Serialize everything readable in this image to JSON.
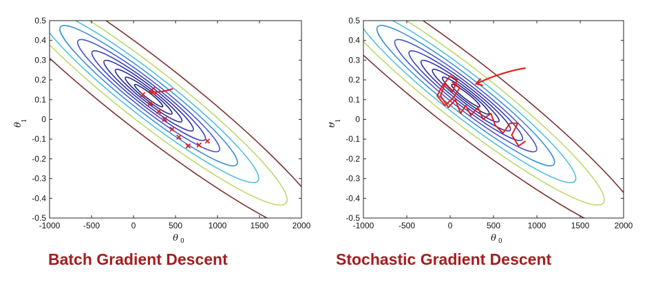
{
  "chart_data": [
    {
      "type": "contour",
      "caption": "Batch Gradient Descent",
      "xlabel": "θ",
      "xlabel_sub": "0",
      "ylabel": "θ",
      "ylabel_sub": "1",
      "xlim": [
        -1000,
        2000
      ],
      "ylim": [
        -0.5,
        0.5
      ],
      "xticks": [
        "-1000",
        "-500",
        "0",
        "500",
        "1000",
        "1500",
        "2000"
      ],
      "yticks": [
        "0.5",
        "0.4",
        "0.3",
        "0.2",
        "0.1",
        "0",
        "-0.1",
        "-0.2",
        "-0.3",
        "-0.4",
        "-0.5"
      ],
      "grid": false,
      "path_color": "#e0201a",
      "path_marker": "x",
      "path": [
        {
          "x": 880,
          "y": -0.11
        },
        {
          "x": 780,
          "y": -0.13
        },
        {
          "x": 650,
          "y": -0.135
        },
        {
          "x": 540,
          "y": -0.09
        },
        {
          "x": 460,
          "y": -0.05
        },
        {
          "x": 370,
          "y": 0.0
        },
        {
          "x": 300,
          "y": 0.04
        },
        {
          "x": 200,
          "y": 0.08
        },
        {
          "x": 110,
          "y": 0.125
        }
      ],
      "arrow": {
        "from": {
          "x": 470,
          "y": 0.155
        },
        "to": {
          "x": 190,
          "y": 0.14
        }
      }
    },
    {
      "type": "contour",
      "caption": "Stochastic Gradient Descent",
      "xlabel": "θ",
      "xlabel_sub": "0",
      "ylabel": "θ",
      "ylabel_sub": "1",
      "xlim": [
        -1000,
        2000
      ],
      "ylim": [
        -0.5,
        0.5
      ],
      "xticks": [
        "-1000",
        "-500",
        "0",
        "500",
        "1000",
        "1500",
        "2000"
      ],
      "yticks": [
        "0.5",
        "0.4",
        "0.3",
        "0.2",
        "0.1",
        "0",
        "-0.1",
        "-0.2",
        "-0.3",
        "-0.4",
        "-0.5"
      ],
      "grid": false,
      "path_color": "#e0201a",
      "path_marker": "none",
      "path": [
        {
          "x": 870,
          "y": -0.11
        },
        {
          "x": 790,
          "y": -0.135
        },
        {
          "x": 710,
          "y": -0.08
        },
        {
          "x": 780,
          "y": -0.02
        },
        {
          "x": 690,
          "y": -0.02
        },
        {
          "x": 610,
          "y": -0.07
        },
        {
          "x": 520,
          "y": -0.03
        },
        {
          "x": 470,
          "y": 0.03
        },
        {
          "x": 380,
          "y": 0.0
        },
        {
          "x": 320,
          "y": 0.06
        },
        {
          "x": 240,
          "y": 0.02
        },
        {
          "x": 180,
          "y": 0.07
        },
        {
          "x": 120,
          "y": 0.03
        },
        {
          "x": 60,
          "y": 0.1
        },
        {
          "x": -20,
          "y": 0.06
        },
        {
          "x": -110,
          "y": 0.12
        },
        {
          "x": -60,
          "y": 0.18
        },
        {
          "x": 30,
          "y": 0.14
        },
        {
          "x": 80,
          "y": 0.2
        },
        {
          "x": 0,
          "y": 0.22
        },
        {
          "x": -90,
          "y": 0.17
        },
        {
          "x": -150,
          "y": 0.12
        },
        {
          "x": -60,
          "y": 0.07
        },
        {
          "x": 40,
          "y": 0.11
        },
        {
          "x": 110,
          "y": 0.16
        },
        {
          "x": 20,
          "y": 0.19
        }
      ],
      "arrow": {
        "from": {
          "x": 870,
          "y": 0.26
        },
        "to": {
          "x": 300,
          "y": 0.18
        }
      }
    }
  ]
}
